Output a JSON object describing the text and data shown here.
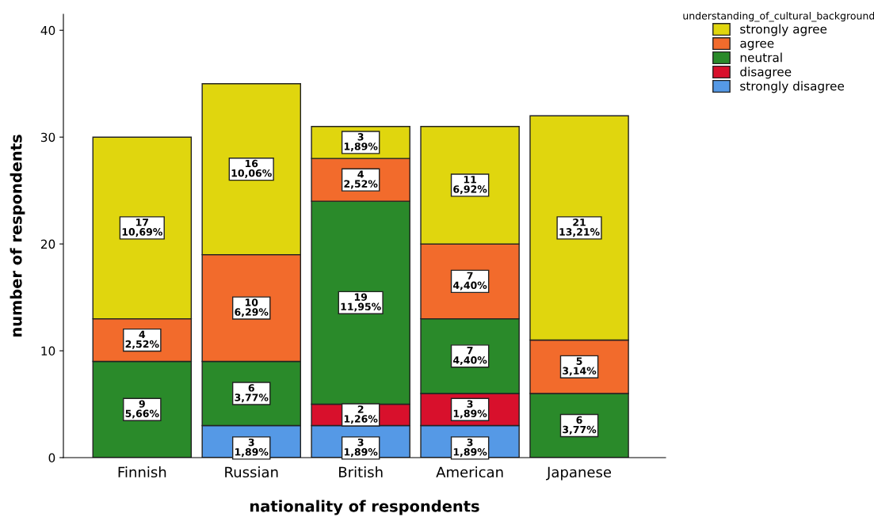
{
  "chart_data": {
    "type": "bar",
    "stacked": true,
    "xlabel": "nationality of respondents",
    "ylabel": "number of respondents",
    "legend_title": "understanding_of_cultural_background",
    "legend": "top right",
    "grid": false,
    "categories": [
      "Finnish",
      "Russian",
      "British",
      "American",
      "Japanese"
    ],
    "ylim": [
      0,
      41.5
    ],
    "yticks": [
      0,
      10,
      20,
      30,
      40
    ],
    "series": [
      {
        "name": "strongly disagree",
        "color": "#5599e6",
        "values": [
          null,
          3,
          3,
          3,
          null
        ],
        "value_labels": [
          null,
          "3\n1,89%",
          "3\n1,89%",
          "3\n1,89%",
          null
        ]
      },
      {
        "name": "disagree",
        "color": "#d8102c",
        "values": [
          null,
          null,
          2,
          3,
          null
        ],
        "value_labels": [
          null,
          null,
          "2\n1,26%",
          "3\n1,89%",
          null
        ]
      },
      {
        "name": "neutral",
        "color": "#2a8a2a",
        "values": [
          9,
          6,
          19,
          7,
          6
        ],
        "value_labels": [
          "9\n5,66%",
          "6\n3,77%",
          "19\n11,95%",
          "7\n4,40%",
          "6\n3,77%"
        ]
      },
      {
        "name": "agree",
        "color": "#f26b2c",
        "values": [
          4,
          10,
          4,
          7,
          5
        ],
        "value_labels": [
          "4\n2,52%",
          "10\n6,29%",
          "4\n2,52%",
          "7\n4,40%",
          "5\n3,14%"
        ]
      },
      {
        "name": "strongly agree",
        "color": "#e0d60e",
        "values": [
          17,
          16,
          3,
          11,
          21
        ],
        "value_labels": [
          "17\n10,69%",
          "16\n10,06%",
          "3\n1,89%",
          "11\n6,92%",
          "21\n13,21%"
        ]
      }
    ]
  }
}
